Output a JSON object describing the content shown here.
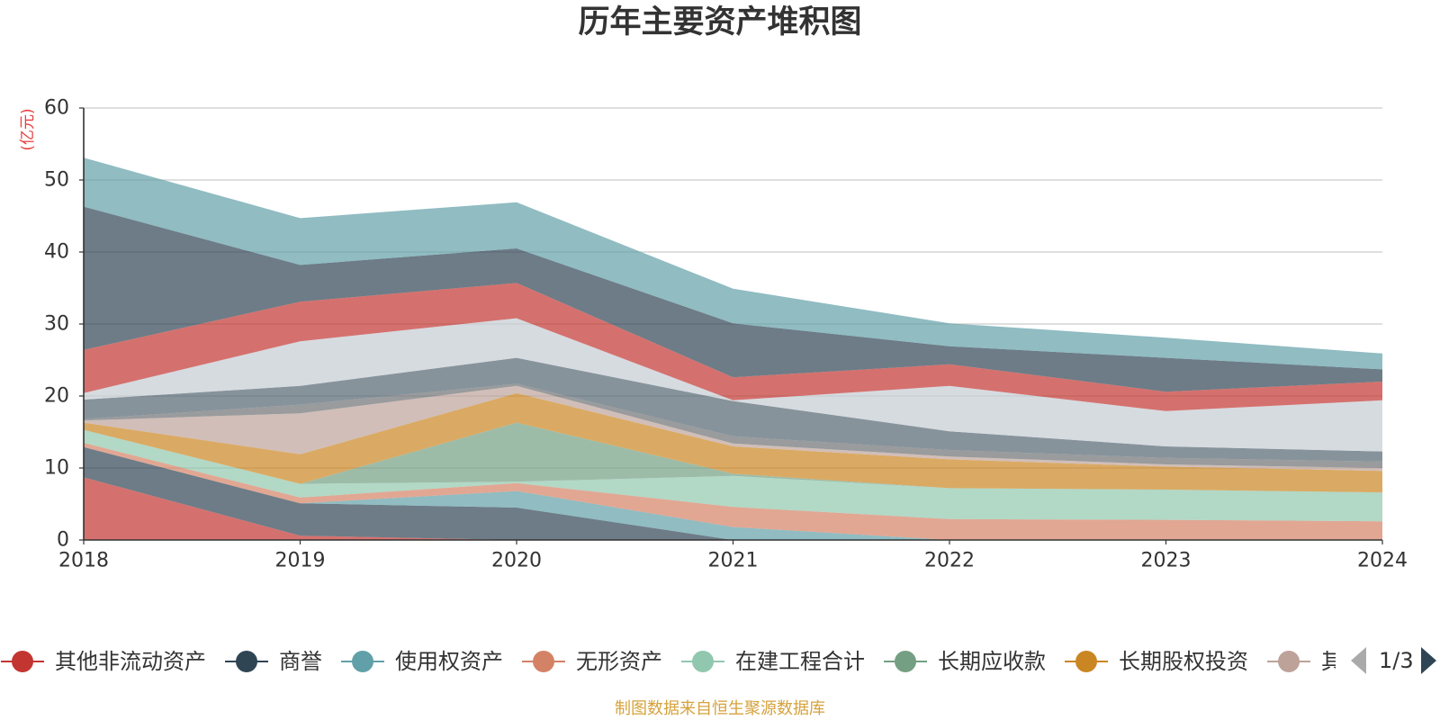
{
  "chart_data": {
    "type": "area",
    "stacked": true,
    "title": "历年主要资产堆积图",
    "xlabel": "",
    "ylabel": "(亿元)",
    "ylim": [
      0,
      60
    ],
    "yticks": [
      0,
      10,
      20,
      30,
      40,
      50,
      60
    ],
    "grid": true,
    "fill_opacity": 0.7,
    "x": [
      "2018",
      "2019",
      "2020",
      "2021",
      "2022",
      "2023",
      "2024"
    ],
    "series": [
      {
        "name": "其他非流动资产",
        "color": "#c23531",
        "values": [
          8.7,
          0.6,
          0.0,
          0.0,
          0.0,
          0.0,
          0.0
        ]
      },
      {
        "name": "商誉",
        "color": "#2f4554",
        "values": [
          4.2,
          4.5,
          4.5,
          0.0,
          0.0,
          0.0,
          0.0
        ]
      },
      {
        "name": "使用权资产",
        "color": "#61a0a8",
        "values": [
          0.0,
          0.0,
          2.3,
          1.8,
          0.0,
          0.0,
          0.0
        ]
      },
      {
        "name": "无形资产",
        "color": "#d48265",
        "values": [
          0.6,
          0.8,
          1.1,
          2.8,
          2.9,
          2.8,
          2.6
        ]
      },
      {
        "name": "在建工程合计",
        "color": "#91c7ae",
        "values": [
          1.8,
          1.9,
          0.2,
          4.3,
          4.3,
          4.2,
          4.0
        ]
      },
      {
        "name": "长期应收款",
        "color": "#749f83",
        "values": [
          0.0,
          0.0,
          8.2,
          0.3,
          0.0,
          0.0,
          0.0
        ]
      },
      {
        "name": "长期股权投资",
        "color": "#ca8622",
        "values": [
          1.0,
          4.1,
          4.1,
          3.8,
          4.0,
          3.2,
          3.0
        ]
      },
      {
        "name": "其",
        "color": "#bda29a",
        "values": [
          0.3,
          5.7,
          1.0,
          0.4,
          0.4,
          0.3,
          0.4
        ]
      },
      {
        "color": "#6e7074",
        "values": [
          0.2,
          1.2,
          0.3,
          1.0,
          0.9,
          0.9,
          0.9
        ]
      },
      {
        "color": "#546570",
        "values": [
          2.7,
          2.6,
          3.6,
          4.9,
          2.6,
          1.6,
          1.4
        ]
      },
      {
        "color": "#c4ccd3",
        "values": [
          0.9,
          6.2,
          5.5,
          0.1,
          6.3,
          4.9,
          7.1
        ]
      },
      {
        "color": "#c23531",
        "values": [
          6.0,
          5.5,
          4.9,
          3.2,
          3.0,
          2.7,
          2.6
        ]
      },
      {
        "color": "#2f4554",
        "values": [
          19.9,
          5.1,
          4.8,
          7.5,
          2.5,
          4.7,
          1.7
        ]
      },
      {
        "color": "#61a0a8",
        "values": [
          6.8,
          6.5,
          6.4,
          4.8,
          3.2,
          2.8,
          2.2
        ]
      }
    ],
    "legend_page": "1/3"
  },
  "source": "制图数据来自恒生聚源数据库",
  "colors": {
    "unit_label": "#e63d3b",
    "source_text": "#d5a23c",
    "pager_inactive": "#aaaaaa",
    "pager_active": "#2f4554"
  }
}
